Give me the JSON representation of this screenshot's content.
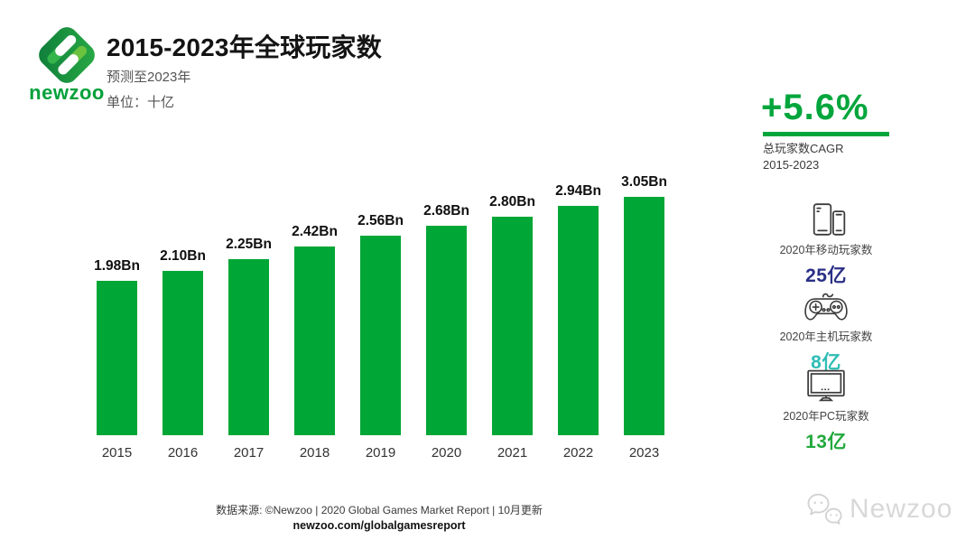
{
  "header": {
    "logo_text": "newzoo",
    "title": "2015-2023年全球玩家数",
    "subtitle": "预测至2023年",
    "unit_label": "单位：十亿"
  },
  "chart_data": {
    "type": "bar",
    "title": "2015-2023年全球玩家数",
    "unit": "十亿 (Bn)",
    "categories": [
      "2015",
      "2016",
      "2017",
      "2018",
      "2019",
      "2020",
      "2021",
      "2022",
      "2023"
    ],
    "values": [
      1.98,
      2.1,
      2.25,
      2.42,
      2.56,
      2.68,
      2.8,
      2.94,
      3.05
    ],
    "value_labels": [
      "1.98Bn",
      "2.10Bn",
      "2.25Bn",
      "2.42Bn",
      "2.56Bn",
      "2.68Bn",
      "2.80Bn",
      "2.94Bn",
      "3.05Bn"
    ],
    "bar_color": "#00a636",
    "ylim": [
      0,
      3.2
    ],
    "grid": false,
    "legend": "none"
  },
  "highlight": {
    "cagr_value": "+5.6%",
    "cagr_caption_line1": "总玩家数CAGR",
    "cagr_caption_line2": "2015-2023",
    "accent_color": "#00a63c"
  },
  "stats": [
    {
      "icon": "mobile-devices-icon",
      "label": "2020年移动玩家数",
      "value": "25亿",
      "value_color": "#2a2f86"
    },
    {
      "icon": "gamepad-icon",
      "label": "2020年主机玩家数",
      "value": "8亿",
      "value_color": "#2fbdb5"
    },
    {
      "icon": "monitor-icon",
      "label": "2020年PC玩家数",
      "value": "13亿",
      "value_color": "#22a93c"
    }
  ],
  "footer": {
    "source_line": "数据来源: ©Newzoo | 2020 Global Games Market Report | 10月更新",
    "link": "newzoo.com/globalgamesreport"
  },
  "watermark": {
    "icon": "wechat-icon",
    "text": "Newzoo"
  }
}
